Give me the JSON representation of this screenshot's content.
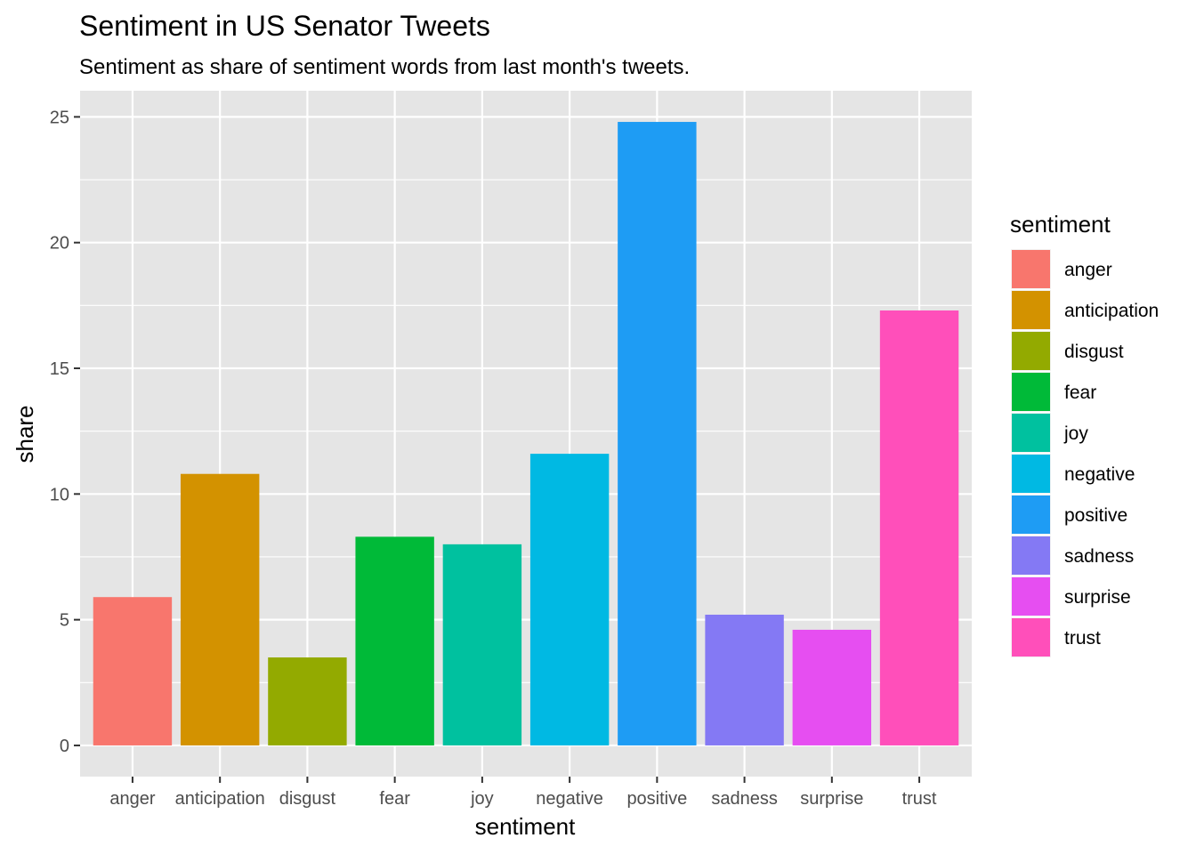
{
  "chart_data": {
    "type": "bar",
    "title": "Sentiment in US Senator Tweets",
    "subtitle": "Sentiment as share of sentiment words from last month's tweets.",
    "xlabel": "sentiment",
    "ylabel": "share",
    "categories": [
      "anger",
      "anticipation",
      "disgust",
      "fear",
      "joy",
      "negative",
      "positive",
      "sadness",
      "surprise",
      "trust"
    ],
    "values": [
      5.9,
      10.8,
      3.5,
      8.3,
      8.0,
      11.6,
      24.8,
      5.2,
      4.6,
      17.3
    ],
    "colors": [
      "#F8766D",
      "#D39200",
      "#93AA00",
      "#00BA38",
      "#00C19F",
      "#00B9E3",
      "#1E9CF4",
      "#8479F4",
      "#E64EF1",
      "#FF4FBA"
    ],
    "ylim": [
      -1.24,
      26.04
    ],
    "yticks": [
      0,
      5,
      10,
      15,
      20,
      25
    ],
    "grid": true,
    "legend": {
      "title": "sentiment",
      "position": "right",
      "items": [
        "anger",
        "anticipation",
        "disgust",
        "fear",
        "joy",
        "negative",
        "positive",
        "sadness",
        "surprise",
        "trust"
      ]
    },
    "panel_background": "#E5E5E5",
    "grid_color": "#FFFFFF",
    "tick_label_color": "#4D4D4D"
  }
}
